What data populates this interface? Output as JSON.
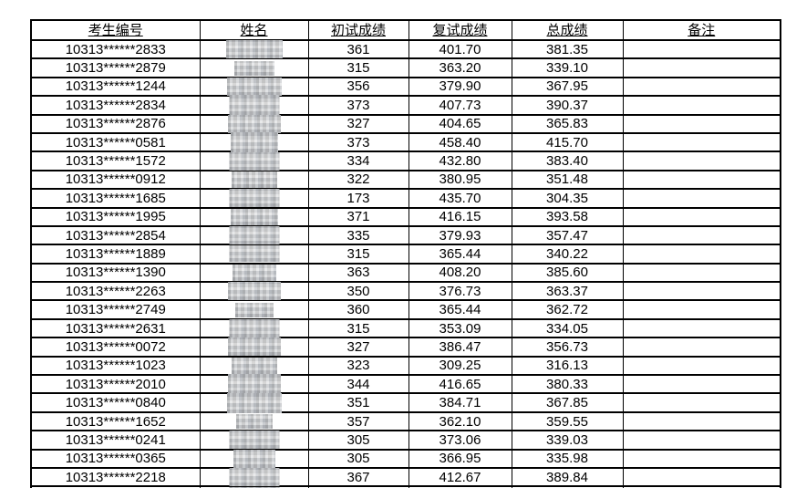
{
  "colors": {
    "background": "#ffffff",
    "border": "#000000",
    "text": "#000000",
    "redaction_gray": "#c8cacc"
  },
  "table": {
    "headers": [
      "考生编号",
      "姓名",
      "初试成绩",
      "复试成绩",
      "总成绩",
      "备注"
    ],
    "rows": [
      {
        "id": "10313******2833",
        "name_redacted": true,
        "initial": "361",
        "retest": "401.70",
        "total": "381.35",
        "remark": "",
        "blur_w": 62,
        "blur_h": 20
      },
      {
        "id": "10313******2879",
        "name_redacted": true,
        "initial": "315",
        "retest": "363.20",
        "total": "339.10",
        "remark": "",
        "blur_w": 44,
        "blur_h": 16
      },
      {
        "id": "10313******1244",
        "name_redacted": true,
        "initial": "356",
        "retest": "379.90",
        "total": "367.95",
        "remark": "",
        "blur_w": 60,
        "blur_h": 20
      },
      {
        "id": "10313******2834",
        "name_redacted": true,
        "initial": "373",
        "retest": "407.73",
        "total": "390.37",
        "remark": "",
        "blur_w": 55,
        "blur_h": 22
      },
      {
        "id": "10313******2876",
        "name_redacted": true,
        "initial": "327",
        "retest": "404.65",
        "total": "365.83",
        "remark": "",
        "blur_w": 58,
        "blur_h": 20
      },
      {
        "id": "10313******0581",
        "name_redacted": true,
        "initial": "373",
        "retest": "458.40",
        "total": "415.70",
        "remark": "",
        "blur_w": 52,
        "blur_h": 22
      },
      {
        "id": "10313******1572",
        "name_redacted": true,
        "initial": "334",
        "retest": "432.80",
        "total": "383.40",
        "remark": "",
        "blur_w": 55,
        "blur_h": 20
      },
      {
        "id": "10313******0912",
        "name_redacted": true,
        "initial": "322",
        "retest": "380.95",
        "total": "351.48",
        "remark": "",
        "blur_w": 50,
        "blur_h": 18
      },
      {
        "id": "10313******1685",
        "name_redacted": true,
        "initial": "173",
        "retest": "435.70",
        "total": "304.35",
        "remark": "",
        "blur_w": 55,
        "blur_h": 20
      },
      {
        "id": "10313******1995",
        "name_redacted": true,
        "initial": "371",
        "retest": "416.15",
        "total": "393.58",
        "remark": "",
        "blur_w": 52,
        "blur_h": 18
      },
      {
        "id": "10313******2854",
        "name_redacted": true,
        "initial": "335",
        "retest": "379.93",
        "total": "357.47",
        "remark": "",
        "blur_w": 55,
        "blur_h": 20
      },
      {
        "id": "10313******1889",
        "name_redacted": true,
        "initial": "315",
        "retest": "365.44",
        "total": "340.22",
        "remark": "",
        "blur_w": 55,
        "blur_h": 18
      },
      {
        "id": "10313******1390",
        "name_redacted": true,
        "initial": "363",
        "retest": "408.20",
        "total": "385.60",
        "remark": "",
        "blur_w": 48,
        "blur_h": 18
      },
      {
        "id": "10313******2263",
        "name_redacted": true,
        "initial": "350",
        "retest": "376.73",
        "total": "363.37",
        "remark": "",
        "blur_w": 58,
        "blur_h": 20
      },
      {
        "id": "10313******2749",
        "name_redacted": true,
        "initial": "360",
        "retest": "365.44",
        "total": "362.72",
        "remark": "",
        "blur_w": 42,
        "blur_h": 16
      },
      {
        "id": "10313******2631",
        "name_redacted": true,
        "initial": "315",
        "retest": "353.09",
        "total": "334.05",
        "remark": "",
        "blur_w": 55,
        "blur_h": 20
      },
      {
        "id": "10313******0072",
        "name_redacted": true,
        "initial": "327",
        "retest": "386.47",
        "total": "356.73",
        "remark": "",
        "blur_w": 58,
        "blur_h": 20
      },
      {
        "id": "10313******1023",
        "name_redacted": true,
        "initial": "323",
        "retest": "309.25",
        "total": "316.13",
        "remark": "",
        "blur_w": 50,
        "blur_h": 18
      },
      {
        "id": "10313******2010",
        "name_redacted": true,
        "initial": "344",
        "retest": "416.65",
        "total": "380.33",
        "remark": "",
        "blur_w": 58,
        "blur_h": 22
      },
      {
        "id": "10313******0840",
        "name_redacted": true,
        "initial": "351",
        "retest": "384.71",
        "total": "367.85",
        "remark": "",
        "blur_w": 60,
        "blur_h": 22
      },
      {
        "id": "10313******1652",
        "name_redacted": true,
        "initial": "357",
        "retest": "362.10",
        "total": "359.55",
        "remark": "",
        "blur_w": 40,
        "blur_h": 16
      },
      {
        "id": "10313******0241",
        "name_redacted": true,
        "initial": "305",
        "retest": "373.06",
        "total": "339.03",
        "remark": "",
        "blur_w": 55,
        "blur_h": 20
      },
      {
        "id": "10313******0365",
        "name_redacted": true,
        "initial": "305",
        "retest": "366.95",
        "total": "335.98",
        "remark": "",
        "blur_w": 46,
        "blur_h": 20
      },
      {
        "id": "10313******2218",
        "name_redacted": true,
        "initial": "367",
        "retest": "412.67",
        "total": "389.84",
        "remark": "",
        "blur_w": 55,
        "blur_h": 20
      }
    ],
    "partial_row": {
      "name_redacted": true,
      "blur_w": 55,
      "blur_h": 20
    }
  }
}
